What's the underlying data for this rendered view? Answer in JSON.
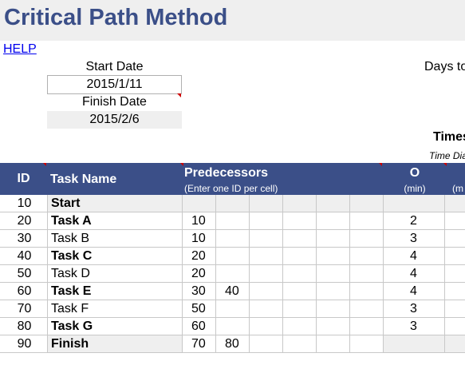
{
  "title": "Critical Path Method",
  "help_label": "HELP",
  "start_date": {
    "label": "Start Date",
    "value": "2015/1/11"
  },
  "finish_date": {
    "label": "Finish Date",
    "value": "2015/2/6"
  },
  "days_label": "Days to",
  "timescale_label": "Times",
  "time_diag_label": "Time Dia",
  "table": {
    "headers": {
      "id": "ID",
      "task_name": "Task Name",
      "predecessors": "Predecessors",
      "predecessors_sub": "(Enter one ID per cell)",
      "o": "O",
      "o_unit": "(min)",
      "m_unit": "(m"
    },
    "rows": [
      {
        "id": "10",
        "name": "Start",
        "bold": true,
        "pred": [
          "",
          ""
        ],
        "o": ""
      },
      {
        "id": "20",
        "name": "Task A",
        "bold": true,
        "pred": [
          "10",
          ""
        ],
        "o": "2"
      },
      {
        "id": "30",
        "name": "Task B",
        "bold": false,
        "pred": [
          "10",
          ""
        ],
        "o": "3"
      },
      {
        "id": "40",
        "name": "Task C",
        "bold": true,
        "pred": [
          "20",
          ""
        ],
        "o": "4"
      },
      {
        "id": "50",
        "name": "Task D",
        "bold": false,
        "pred": [
          "20",
          ""
        ],
        "o": "4"
      },
      {
        "id": "60",
        "name": "Task E",
        "bold": true,
        "pred": [
          "30",
          "40"
        ],
        "o": "4"
      },
      {
        "id": "70",
        "name": "Task F",
        "bold": false,
        "pred": [
          "50",
          ""
        ],
        "o": "3"
      },
      {
        "id": "80",
        "name": "Task G",
        "bold": true,
        "pred": [
          "60",
          ""
        ],
        "o": "3"
      },
      {
        "id": "90",
        "name": "Finish",
        "bold": true,
        "pred": [
          "70",
          "80"
        ],
        "o": ""
      }
    ]
  },
  "colors": {
    "header_bg": "#3b4f88",
    "title_color": "#3b4f88",
    "band_gray": "#efefef",
    "comment_marker": "#cc0000"
  }
}
